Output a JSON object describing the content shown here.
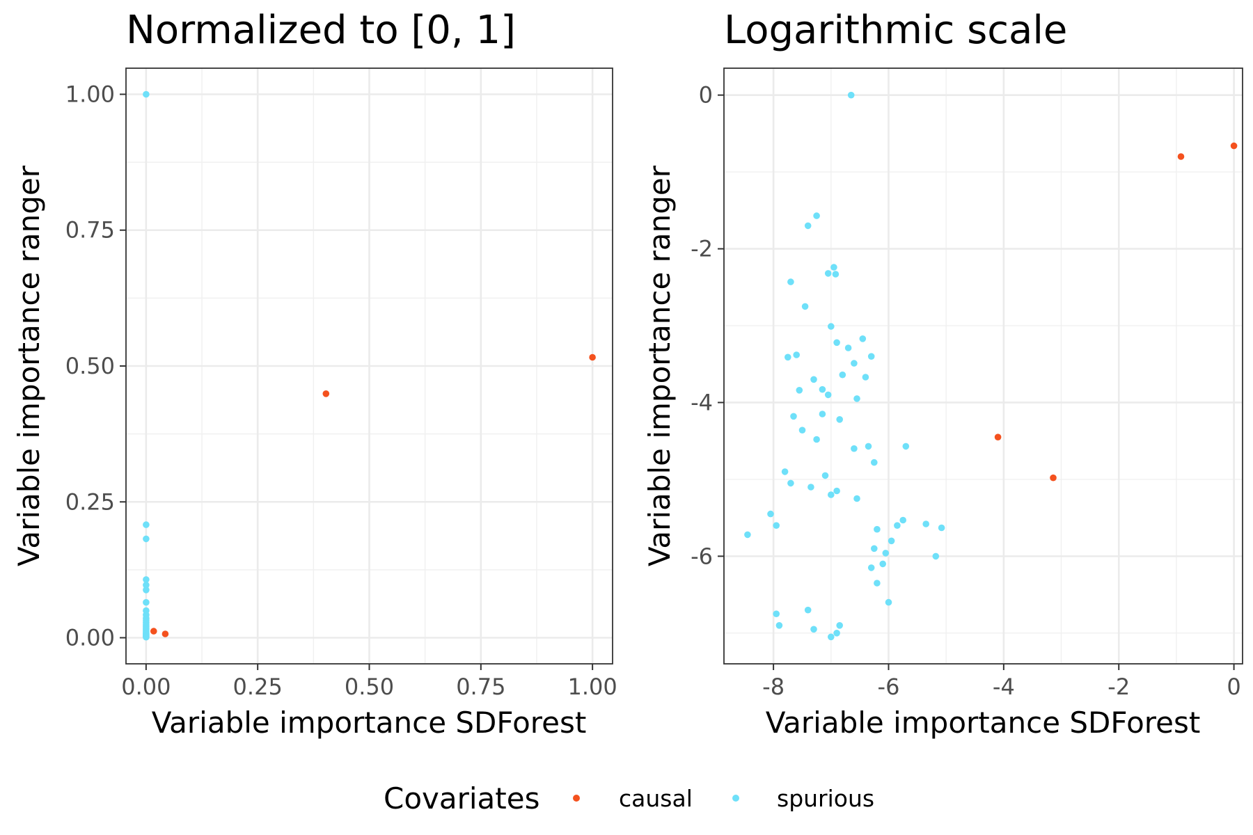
{
  "chart_data": [
    {
      "type": "scatter",
      "title": "Normalized to [0, 1]",
      "xlabel": "Variable importance SDForest",
      "ylabel": "Variable importance ranger",
      "xlim": [
        -0.045,
        1.045
      ],
      "ylim": [
        -0.048,
        1.048
      ],
      "xticks": [
        0,
        0.25,
        0.5,
        0.75,
        1
      ],
      "xtick_labels": [
        "0.00",
        "0.25",
        "0.50",
        "0.75",
        "1.00"
      ],
      "yticks": [
        0,
        0.25,
        0.5,
        0.75,
        1
      ],
      "ytick_labels": [
        "0.00",
        "0.25",
        "0.50",
        "0.75",
        "1.00"
      ],
      "grid": true,
      "series": [
        {
          "name": "causal",
          "color": "#f4511e",
          "x": [
            1.0,
            0.403,
            0.043,
            0.017
          ],
          "y": [
            0.516,
            0.449,
            0.007,
            0.012
          ]
        },
        {
          "name": "spurious",
          "color": "#6ee0f9",
          "x": [
            0.0,
            0.0,
            0.0,
            0.0,
            0.0,
            0.0,
            0.0,
            0.0,
            0.0,
            0.0,
            0.0,
            0.0,
            0.0,
            0.0,
            0.0,
            0.0,
            0.0,
            0.0,
            0.0,
            0.0,
            0.0,
            0.0,
            0.0,
            0.0,
            0.0,
            0.0,
            0.0
          ],
          "y": [
            1.0,
            0.208,
            0.182,
            0.107,
            0.097,
            0.088,
            0.065,
            0.05,
            0.042,
            0.036,
            0.032,
            0.028,
            0.025,
            0.022,
            0.02,
            0.017,
            0.015,
            0.013,
            0.011,
            0.009,
            0.008,
            0.006,
            0.005,
            0.004,
            0.003,
            0.002,
            0.001
          ]
        }
      ]
    },
    {
      "type": "scatter",
      "title": "Logarithmic scale",
      "xlabel": "Variable importance SDForest",
      "ylabel": "Variable importance ranger",
      "xlim": [
        -8.86,
        0.15
      ],
      "ylim": [
        -7.4,
        0.35
      ],
      "xticks": [
        -8,
        -6,
        -4,
        -2,
        0
      ],
      "xtick_labels": [
        "-8",
        "-6",
        "-4",
        "-2",
        "0"
      ],
      "yticks": [
        -6,
        -4,
        -2,
        0
      ],
      "ytick_labels": [
        "-6",
        "-4",
        "-2",
        "0"
      ],
      "grid": true,
      "series": [
        {
          "name": "causal",
          "color": "#f4511e",
          "x": [
            0.0,
            -0.92,
            -4.1,
            -3.14
          ],
          "y": [
            -0.66,
            -0.8,
            -4.45,
            -4.98
          ]
        },
        {
          "name": "spurious",
          "color": "#6ee0f9",
          "x": [
            -6.65,
            -7.25,
            -7.4,
            -6.95,
            -6.92,
            -7.05,
            -7.7,
            -7.45,
            -7.0,
            -6.9,
            -6.7,
            -6.45,
            -6.3,
            -7.6,
            -7.75,
            -6.6,
            -6.8,
            -7.3,
            -7.15,
            -7.55,
            -7.05,
            -6.55,
            -6.4,
            -7.65,
            -7.15,
            -6.85,
            -7.25,
            -7.5,
            -6.6,
            -6.35,
            -6.25,
            -7.1,
            -7.8,
            -7.7,
            -7.35,
            -6.9,
            -7.0,
            -6.55,
            -8.45,
            -8.05,
            -7.95,
            -5.75,
            -5.85,
            -5.95,
            -6.05,
            -5.7,
            -5.35,
            -5.08,
            -5.18,
            -6.1,
            -6.2,
            -6.0,
            -6.2,
            -6.25,
            -6.3,
            -6.85,
            -6.9,
            -7.0,
            -7.3,
            -7.4,
            -7.95,
            -7.9
          ],
          "y": [
            0.0,
            -1.57,
            -1.7,
            -2.24,
            -2.33,
            -2.32,
            -2.43,
            -2.75,
            -3.01,
            -3.22,
            -3.29,
            -3.17,
            -3.4,
            -3.38,
            -3.41,
            -3.49,
            -3.64,
            -3.7,
            -3.83,
            -3.84,
            -3.9,
            -3.95,
            -3.67,
            -4.18,
            -4.15,
            -4.22,
            -4.48,
            -4.36,
            -4.6,
            -4.57,
            -4.78,
            -4.95,
            -4.9,
            -5.05,
            -5.1,
            -5.15,
            -5.2,
            -5.25,
            -5.72,
            -5.45,
            -5.6,
            -5.53,
            -5.6,
            -5.8,
            -5.96,
            -4.57,
            -5.58,
            -5.63,
            -6.0,
            -6.1,
            -6.35,
            -6.6,
            -5.65,
            -5.9,
            -6.15,
            -6.9,
            -7.0,
            -7.05,
            -6.95,
            -6.7,
            -6.75,
            -6.9
          ]
        }
      ]
    }
  ],
  "legend": {
    "title": "Covariates",
    "placement": "bottom",
    "items": [
      {
        "label": "causal",
        "color": "#f4511e"
      },
      {
        "label": "spurious",
        "color": "#6ee0f9"
      }
    ]
  }
}
